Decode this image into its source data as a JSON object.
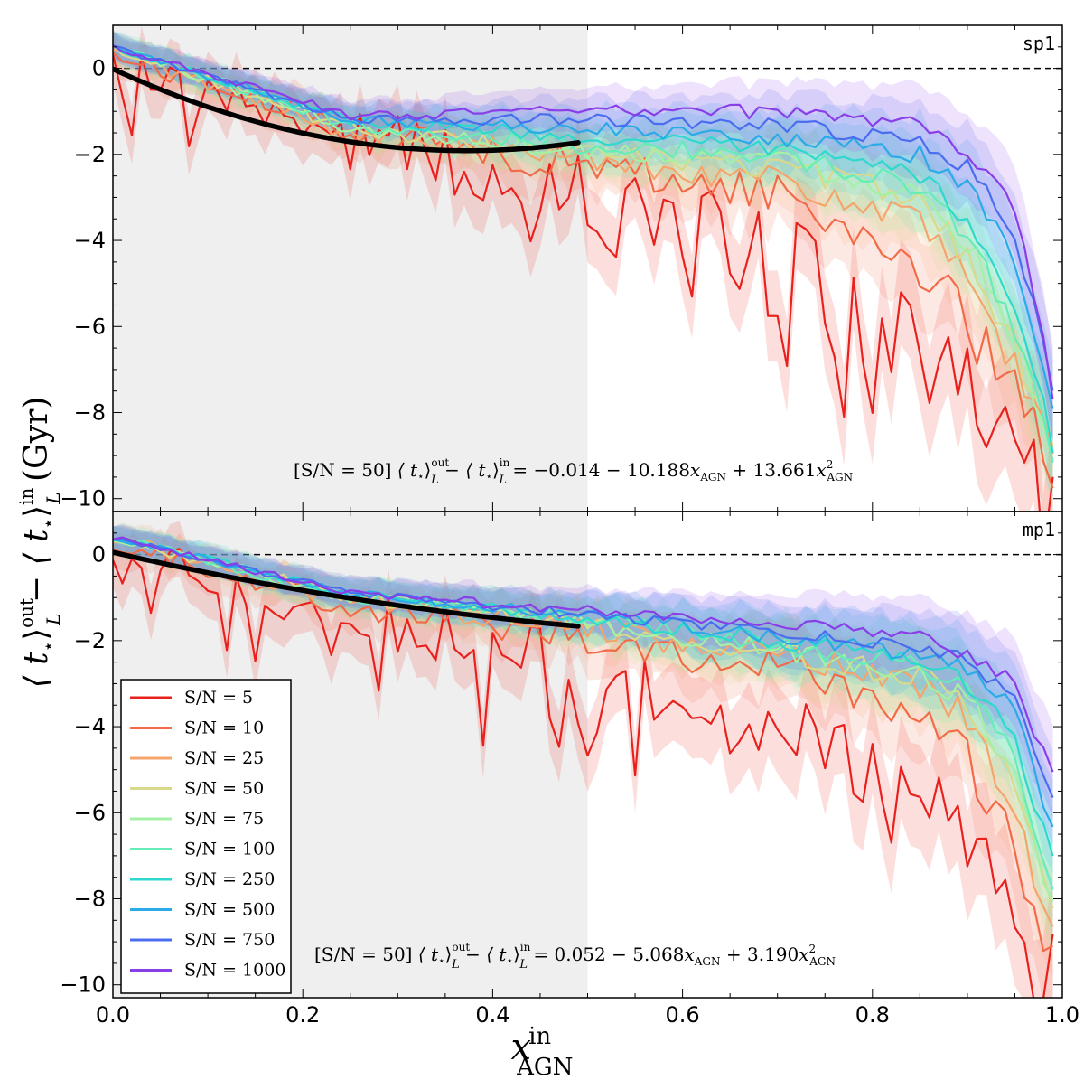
{
  "chart_data": {
    "type": "line",
    "x_title": "x",
    "x_title_sup": "in",
    "x_title_sub": "AGN",
    "y_title": {
      "lead": "⟨ t",
      "star": "⋆",
      "close": "⟩",
      "sub": "L",
      "sup_out": "out",
      "sup_in": "in",
      "minus": " − ",
      "unit": " (Gyr)"
    },
    "xlim": [
      0.0,
      1.0
    ],
    "x_ticks": [
      "0.0",
      "0.2",
      "0.4",
      "0.6",
      "0.8",
      "1.0"
    ],
    "shaded_region": [
      0.0,
      0.5
    ],
    "legend_position": "lower-left",
    "series_styles": [
      {
        "name": "S/N = 5",
        "color": "#e8211d"
      },
      {
        "name": "S/N = 10",
        "color": "#f26a47"
      },
      {
        "name": "S/N = 25",
        "color": "#f5a46c"
      },
      {
        "name": "S/N = 50",
        "color": "#d9d98c"
      },
      {
        "name": "S/N = 75",
        "color": "#a4f0a4"
      },
      {
        "name": "S/N = 100",
        "color": "#66ecb8"
      },
      {
        "name": "S/N = 250",
        "color": "#2fd8cf"
      },
      {
        "name": "S/N = 500",
        "color": "#2aabe8"
      },
      {
        "name": "S/N = 750",
        "color": "#4a6df0"
      },
      {
        "name": "S/N = 1000",
        "color": "#8a3ee8"
      }
    ],
    "panels": [
      {
        "label": "sp1",
        "ylim": [
          -10.3,
          1.0
        ],
        "y_ticks": [
          "0",
          "−2",
          "−4",
          "−6",
          "−8",
          "−10"
        ],
        "y_tick_values": [
          0,
          -2,
          -4,
          -6,
          -8,
          -10
        ],
        "annotation": {
          "prefix": "[S/N = 50]",
          "rhs": "−0.014 − 10.188",
          "mid": " + 13.661",
          "x_name": "x",
          "x_sub": "AGN",
          "sq": "2"
        },
        "fit": {
          "a": -0.014,
          "b": -10.188,
          "c": 13.661,
          "x_max": 0.49
        },
        "endpoints": [
          {
            "x": [
              0.0,
              0.25,
              0.5,
              0.7,
              0.85,
              0.9,
              0.95,
              0.99
            ],
            "y": [
              0.2,
              -1.6,
              -2.8,
              -4.5,
              -6.5,
              -7.2,
              -8.5,
              -9.8
            ],
            "noise": 1.2
          },
          {
            "x": [
              0.0,
              0.25,
              0.5,
              0.7,
              0.85,
              0.9,
              0.95,
              0.99
            ],
            "y": [
              0.3,
              -1.4,
              -2.3,
              -2.9,
              -4.5,
              -6.0,
              -7.6,
              -9.2
            ],
            "noise": 0.55
          },
          {
            "x": [
              0.0,
              0.25,
              0.5,
              0.7,
              0.85,
              0.9,
              0.95,
              0.99
            ],
            "y": [
              0.4,
              -1.5,
              -2.1,
              -2.6,
              -3.6,
              -5.0,
              -7.0,
              -8.6
            ],
            "noise": 0.35
          },
          {
            "x": [
              0.0,
              0.25,
              0.5,
              0.7,
              0.85,
              0.9,
              0.95,
              0.99
            ],
            "y": [
              0.5,
              -1.4,
              -2.0,
              -2.3,
              -3.0,
              -4.4,
              -6.5,
              -8.5
            ],
            "noise": 0.3
          },
          {
            "x": [
              0.0,
              0.25,
              0.5,
              0.7,
              0.85,
              0.9,
              0.95,
              0.99
            ],
            "y": [
              0.5,
              -1.4,
              -1.9,
              -2.1,
              -2.9,
              -4.0,
              -6.2,
              -8.8
            ],
            "noise": 0.28
          },
          {
            "x": [
              0.0,
              0.25,
              0.5,
              0.7,
              0.85,
              0.9,
              0.95,
              0.99
            ],
            "y": [
              0.5,
              -1.3,
              -1.8,
              -2.0,
              -2.8,
              -3.8,
              -6.0,
              -8.9
            ],
            "noise": 0.25
          },
          {
            "x": [
              0.0,
              0.25,
              0.5,
              0.7,
              0.85,
              0.9,
              0.95,
              0.99
            ],
            "y": [
              0.5,
              -1.2,
              -1.6,
              -1.9,
              -2.5,
              -3.5,
              -5.4,
              -8.7
            ],
            "noise": 0.22
          },
          {
            "x": [
              0.0,
              0.25,
              0.5,
              0.7,
              0.85,
              0.9,
              0.95,
              0.99
            ],
            "y": [
              0.5,
              -1.2,
              -1.4,
              -1.6,
              -2.0,
              -2.7,
              -4.4,
              -7.7
            ],
            "noise": 0.2
          },
          {
            "x": [
              0.0,
              0.25,
              0.5,
              0.7,
              0.85,
              0.9,
              0.95,
              0.99
            ],
            "y": [
              0.5,
              -1.2,
              -1.2,
              -1.3,
              -1.7,
              -2.3,
              -3.8,
              -7.3
            ],
            "noise": 0.18
          },
          {
            "x": [
              0.0,
              0.25,
              0.5,
              0.7,
              0.85,
              0.9,
              0.95,
              0.99
            ],
            "y": [
              0.5,
              -1.1,
              -1.0,
              -1.0,
              -1.3,
              -1.9,
              -3.2,
              -7.5
            ],
            "noise": 0.18
          }
        ]
      },
      {
        "label": "mp1",
        "ylim": [
          -10.3,
          1.0
        ],
        "y_ticks": [
          "0",
          "−2",
          "−4",
          "−6",
          "−8",
          "−10"
        ],
        "y_tick_values": [
          0,
          -2,
          -4,
          -6,
          -8,
          -10
        ],
        "annotation": {
          "prefix": "[S/N = 50]",
          "rhs": "0.052 − 5.068",
          "mid": " + 3.190",
          "x_name": "x",
          "x_sub": "AGN",
          "sq": "2"
        },
        "fit": {
          "a": 0.052,
          "b": -5.068,
          "c": 3.19,
          "x_max": 0.49
        },
        "endpoints": [
          {
            "x": [
              0.0,
              0.25,
              0.5,
              0.7,
              0.85,
              0.9,
              0.95,
              0.99
            ],
            "y": [
              0.3,
              -1.5,
              -2.6,
              -3.8,
              -5.0,
              -6.2,
              -8.5,
              -9.9
            ],
            "noise": 1.1
          },
          {
            "x": [
              0.0,
              0.25,
              0.5,
              0.7,
              0.85,
              0.9,
              0.95,
              0.99
            ],
            "y": [
              0.3,
              -1.2,
              -1.9,
              -2.7,
              -3.6,
              -4.8,
              -6.8,
              -9.6
            ],
            "noise": 0.5
          },
          {
            "x": [
              0.0,
              0.25,
              0.5,
              0.7,
              0.85,
              0.9,
              0.95,
              0.99
            ],
            "y": [
              0.4,
              -1.1,
              -1.7,
              -2.4,
              -3.0,
              -3.8,
              -6.0,
              -9.0
            ],
            "noise": 0.35
          },
          {
            "x": [
              0.0,
              0.25,
              0.5,
              0.7,
              0.85,
              0.9,
              0.95,
              0.99
            ],
            "y": [
              0.4,
              -1.0,
              -1.6,
              -2.3,
              -2.8,
              -3.6,
              -5.4,
              -8.5
            ],
            "noise": 0.28
          },
          {
            "x": [
              0.0,
              0.25,
              0.5,
              0.7,
              0.85,
              0.9,
              0.95,
              0.99
            ],
            "y": [
              0.4,
              -1.0,
              -1.6,
              -2.2,
              -2.7,
              -3.4,
              -5.0,
              -8.3
            ],
            "noise": 0.25
          },
          {
            "x": [
              0.0,
              0.25,
              0.5,
              0.7,
              0.85,
              0.9,
              0.95,
              0.99
            ],
            "y": [
              0.4,
              -1.0,
              -1.5,
              -2.1,
              -2.6,
              -3.2,
              -4.7,
              -8.0
            ],
            "noise": 0.22
          },
          {
            "x": [
              0.0,
              0.25,
              0.5,
              0.7,
              0.85,
              0.9,
              0.95,
              0.99
            ],
            "y": [
              0.4,
              -0.9,
              -1.5,
              -2.0,
              -2.5,
              -3.0,
              -4.2,
              -7.2
            ],
            "noise": 0.2
          },
          {
            "x": [
              0.0,
              0.25,
              0.5,
              0.7,
              0.85,
              0.9,
              0.95,
              0.99
            ],
            "y": [
              0.4,
              -0.9,
              -1.4,
              -1.9,
              -2.3,
              -2.7,
              -3.6,
              -6.5
            ],
            "noise": 0.18
          },
          {
            "x": [
              0.0,
              0.25,
              0.5,
              0.7,
              0.85,
              0.9,
              0.95,
              0.99
            ],
            "y": [
              0.4,
              -0.9,
              -1.4,
              -1.8,
              -2.1,
              -2.5,
              -3.3,
              -5.8
            ],
            "noise": 0.16
          },
          {
            "x": [
              0.0,
              0.25,
              0.5,
              0.7,
              0.85,
              0.9,
              0.95,
              0.99
            ],
            "y": [
              0.4,
              -0.9,
              -1.3,
              -1.6,
              -1.9,
              -2.3,
              -3.0,
              -5.2
            ],
            "noise": 0.16
          }
        ]
      }
    ]
  }
}
